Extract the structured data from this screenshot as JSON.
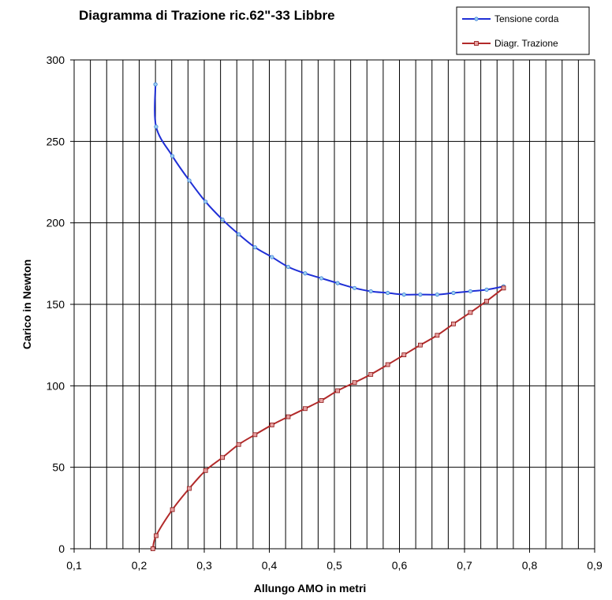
{
  "chart_data": {
    "type": "line",
    "title": "Diagramma di Trazione ric.62\"-33 Libbre",
    "xlabel": "Allungo AMO in metri",
    "ylabel": "Carico in Newton",
    "xlim": [
      0.1,
      0.9
    ],
    "ylim": [
      0,
      300
    ],
    "x_ticks": [
      "0,1",
      "0,2",
      "0,3",
      "0,4",
      "0,5",
      "0,6",
      "0,7",
      "0,8",
      "0,9"
    ],
    "y_ticks": [
      "0",
      "50",
      "100",
      "150",
      "200",
      "250",
      "300"
    ],
    "x_tick_values": [
      0.1,
      0.2,
      0.3,
      0.4,
      0.5,
      0.6,
      0.7,
      0.8,
      0.9
    ],
    "y_tick_values": [
      0,
      50,
      100,
      150,
      200,
      250,
      300
    ],
    "minor_x_step": 0.025,
    "grid": true,
    "legend_position": "top-right",
    "series": [
      {
        "name": "Tensione corda",
        "color": "#1f2fd6",
        "marker": "circle",
        "points": [
          [
            0.225,
            285
          ],
          [
            0.226,
            259
          ],
          [
            0.251,
            241
          ],
          [
            0.277,
            226
          ],
          [
            0.302,
            213
          ],
          [
            0.328,
            202
          ],
          [
            0.353,
            193
          ],
          [
            0.378,
            185
          ],
          [
            0.404,
            179
          ],
          [
            0.429,
            173
          ],
          [
            0.455,
            169
          ],
          [
            0.48,
            166
          ],
          [
            0.505,
            163
          ],
          [
            0.531,
            160
          ],
          [
            0.556,
            158
          ],
          [
            0.582,
            157
          ],
          [
            0.607,
            156
          ],
          [
            0.632,
            156
          ],
          [
            0.658,
            156
          ],
          [
            0.683,
            157
          ],
          [
            0.709,
            158
          ],
          [
            0.734,
            159
          ],
          [
            0.76,
            161
          ]
        ]
      },
      {
        "name": "Diagr. Trazione",
        "color": "#b22a2a",
        "marker": "square",
        "points": [
          [
            0.221,
            0
          ],
          [
            0.226,
            8
          ],
          [
            0.251,
            24
          ],
          [
            0.277,
            37
          ],
          [
            0.302,
            48
          ],
          [
            0.328,
            56
          ],
          [
            0.353,
            64
          ],
          [
            0.378,
            70
          ],
          [
            0.404,
            76
          ],
          [
            0.429,
            81
          ],
          [
            0.455,
            86
          ],
          [
            0.48,
            91
          ],
          [
            0.505,
            97
          ],
          [
            0.531,
            102
          ],
          [
            0.556,
            107
          ],
          [
            0.582,
            113
          ],
          [
            0.607,
            119
          ],
          [
            0.632,
            125
          ],
          [
            0.658,
            131
          ],
          [
            0.683,
            138
          ],
          [
            0.709,
            145
          ],
          [
            0.734,
            152
          ],
          [
            0.76,
            160
          ]
        ]
      }
    ]
  }
}
